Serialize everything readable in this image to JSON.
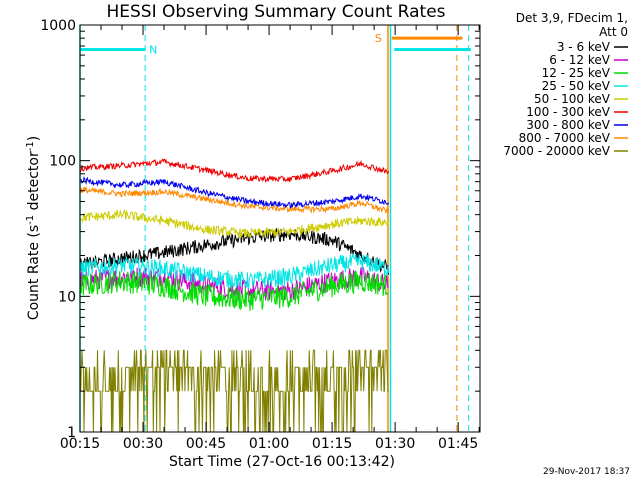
{
  "chart_data": {
    "type": "line",
    "title": "HESSI Observing Summary Count Rates",
    "xlabel": "Start Time (27-Oct-16 00:13:42)",
    "ylabel_main": "Count Rate (s",
    "ylabel_sup1": "-1",
    "ylabel_mid": " detector",
    "ylabel_sup2": "-1",
    "ylabel_end": ")",
    "y_scale": "log",
    "ylim": [
      1,
      1000
    ],
    "xlim_minutes": [
      15,
      53
    ],
    "x_ticks": [
      {
        "t": 15,
        "label": "00:15"
      },
      {
        "t": 30,
        "label": "00:30"
      },
      {
        "t": 45,
        "label": "00:45"
      },
      {
        "t": 60,
        "label": "01:00"
      },
      {
        "t": 75,
        "label": "01:15"
      },
      {
        "t": 90,
        "label": "01:30"
      },
      {
        "t": 105,
        "label": "01:45"
      }
    ],
    "y_ticks": [
      {
        "v": 1,
        "label": "1"
      },
      {
        "v": 10,
        "label": "10"
      },
      {
        "v": 100,
        "label": "100"
      },
      {
        "v": 1000,
        "label": "1000"
      }
    ],
    "data_end_minutes": 88.5,
    "series": [
      {
        "name": "3 - 6 keV",
        "color": "#000000",
        "t": [
          15,
          25,
          35,
          45,
          55,
          65,
          75,
          82,
          88.5
        ],
        "v": [
          17,
          19,
          21,
          24,
          27,
          29,
          26,
          20,
          16
        ],
        "noise": 0.12
      },
      {
        "name": "6 - 12 keV",
        "color": "#cc00cc",
        "t": [
          15,
          25,
          35,
          45,
          55,
          65,
          75,
          82,
          88.5
        ],
        "v": [
          13,
          14,
          14,
          12,
          11,
          11,
          13,
          14,
          12
        ],
        "noise": 0.18
      },
      {
        "name": "12 - 25 keV",
        "color": "#00dd00",
        "t": [
          15,
          25,
          35,
          45,
          55,
          65,
          75,
          82,
          88.5
        ],
        "v": [
          12,
          13,
          12,
          10,
          9.5,
          10,
          12,
          13,
          12
        ],
        "noise": 0.2
      },
      {
        "name": "25 - 50 keV",
        "color": "#00e5e5",
        "t": [
          15,
          25,
          35,
          45,
          55,
          65,
          75,
          82,
          88.5
        ],
        "v": [
          16,
          17,
          16,
          14,
          13,
          14,
          17,
          18,
          16
        ],
        "noise": 0.15
      },
      {
        "name": "50 - 100 keV",
        "color": "#cccc00",
        "t": [
          15,
          25,
          35,
          45,
          55,
          65,
          75,
          82,
          88.5
        ],
        "v": [
          38,
          40,
          36,
          31,
          29,
          30,
          34,
          36,
          35
        ],
        "noise": 0.08
      },
      {
        "name": "100 - 300 keV",
        "color": "#ee0000",
        "t": [
          15,
          25,
          35,
          45,
          55,
          65,
          75,
          82,
          88.5
        ],
        "v": [
          88,
          92,
          98,
          85,
          74,
          73,
          84,
          95,
          82
        ],
        "noise": 0.05
      },
      {
        "name": "300 - 800 keV",
        "color": "#0000ee",
        "t": [
          15,
          25,
          35,
          45,
          55,
          65,
          75,
          82,
          88.5
        ],
        "v": [
          72,
          66,
          70,
          58,
          50,
          47,
          50,
          55,
          49
        ],
        "noise": 0.05
      },
      {
        "name": "800 - 7000 keV",
        "color": "#ff8800",
        "t": [
          15,
          25,
          35,
          45,
          55,
          65,
          75,
          82,
          88.5
        ],
        "v": [
          61,
          57,
          59,
          52,
          46,
          44,
          44,
          49,
          42
        ],
        "noise": 0.05
      },
      {
        "name": "7000 - 20000 keV",
        "color": "#808000",
        "t": [
          15,
          25,
          35,
          45,
          55,
          65,
          75,
          82,
          88.5
        ],
        "v": [
          2.2,
          2.6,
          3.1,
          2.6,
          2.2,
          2.2,
          2.8,
          3.4,
          2.8
        ],
        "noise": 0.35
      }
    ],
    "markers": [
      {
        "label": "N",
        "color": "#00e5e5",
        "t": 30.5,
        "bar_t": [
          15,
          30.5
        ],
        "bar_v": 660
      },
      {
        "label": "S",
        "color": "#ff8800",
        "t": 88.5,
        "bar_t": [
          89.2,
          106
        ],
        "bar_v": 800
      }
    ],
    "bar_cyan_right": {
      "t": [
        89.8,
        108
      ],
      "v": 660
    },
    "vlines_solid": [
      {
        "t": 15,
        "color": "#00e5e5"
      },
      {
        "t": 88.3,
        "color": "#ff8800"
      },
      {
        "t": 88.9,
        "color": "#00e5e5"
      }
    ],
    "vlines_dashed": [
      {
        "t": 30.5,
        "color": "#00e5e5"
      },
      {
        "t": 104.7,
        "color": "#ff8800"
      },
      {
        "t": 107.5,
        "color": "#00e5e5"
      }
    ]
  },
  "legend": {
    "header_line1": "Det 3,9, FDecim 1,",
    "header_line2": "Att 0",
    "items": [
      {
        "label": "3 - 6 keV",
        "color": "#000000"
      },
      {
        "label": "6 - 12 keV",
        "color": "#cc00cc"
      },
      {
        "label": "12 - 25 keV",
        "color": "#00dd00"
      },
      {
        "label": "25 - 50 keV",
        "color": "#00e5e5"
      },
      {
        "label": "50 - 100 keV",
        "color": "#cccc00"
      },
      {
        "label": "100 - 300 keV",
        "color": "#ee0000"
      },
      {
        "label": "300 - 800 keV",
        "color": "#0000ee"
      },
      {
        "label": "800 - 7000 keV",
        "color": "#ff8800"
      },
      {
        "label": "7000 - 20000 keV",
        "color": "#808000"
      }
    ]
  },
  "footer": {
    "timestamp": "29-Nov-2017 18:37"
  }
}
